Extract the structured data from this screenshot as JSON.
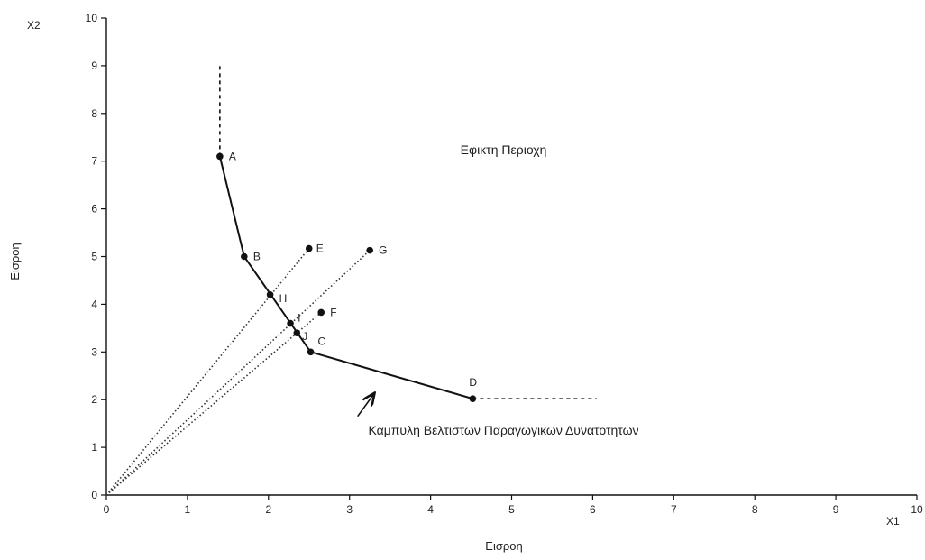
{
  "chart_data": {
    "type": "line",
    "xlim": [
      0,
      10
    ],
    "ylim": [
      0,
      10
    ],
    "x_ticks": [
      0,
      1,
      2,
      3,
      4,
      5,
      6,
      7,
      8,
      9,
      10
    ],
    "y_ticks": [
      0,
      1,
      2,
      3,
      4,
      5,
      6,
      7,
      8,
      9,
      10
    ],
    "x_axis_name": "X1",
    "y_axis_name": "X2",
    "xlabel": "Εισροη",
    "ylabel": "Εισροη",
    "grid": false,
    "points": [
      {
        "label": "A",
        "x": 1.4,
        "y": 7.1
      },
      {
        "label": "B",
        "x": 1.7,
        "y": 5.0
      },
      {
        "label": "H",
        "x": 2.02,
        "y": 4.2
      },
      {
        "label": "I",
        "x": 2.27,
        "y": 3.6
      },
      {
        "label": "J",
        "x": 2.35,
        "y": 3.4
      },
      {
        "label": "C",
        "x": 2.52,
        "y": 3.0
      },
      {
        "label": "D",
        "x": 4.52,
        "y": 2.02
      },
      {
        "label": "E",
        "x": 2.5,
        "y": 5.17
      },
      {
        "label": "F",
        "x": 2.65,
        "y": 3.83
      },
      {
        "label": "G",
        "x": 3.25,
        "y": 5.13
      }
    ],
    "frontier": [
      [
        1.4,
        7.1
      ],
      [
        1.7,
        5.0
      ],
      [
        2.52,
        3.0
      ],
      [
        4.52,
        2.02
      ]
    ],
    "vertical_extension": {
      "x": 1.4,
      "y_from": 7.1,
      "y_to": 9.0
    },
    "horizontal_extension": {
      "y": 2.02,
      "x_from": 4.52,
      "x_to": 6.05
    },
    "rays_from_origin_to": [
      "E",
      "G",
      "F"
    ],
    "annotations": [
      {
        "text": "Εφικτη Περιοχη",
        "x": 4.9,
        "y": 7.15
      },
      {
        "text": "Καμπυλη Βελτιστων Παραγωγικων Δυνατοτητων",
        "x": 4.9,
        "y": 1.27
      }
    ],
    "arrow": {
      "from": [
        3.1,
        1.65
      ],
      "to": [
        3.3,
        2.12
      ]
    }
  }
}
